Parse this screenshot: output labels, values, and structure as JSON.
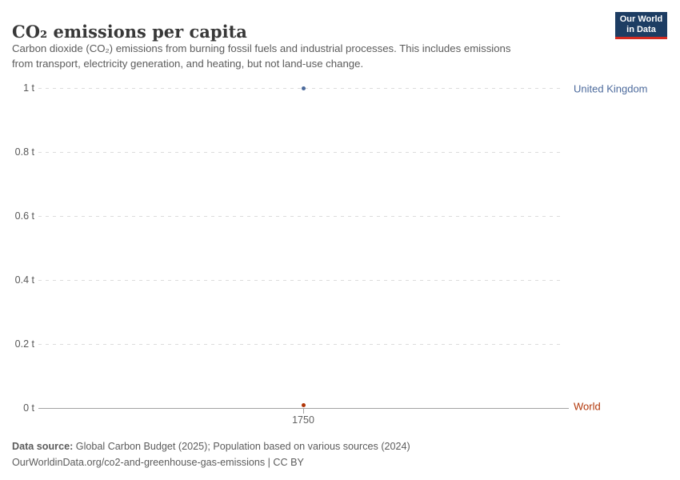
{
  "header": {
    "title": "CO₂ emissions per capita",
    "subtitle_line1": "Carbon dioxide (CO₂) emissions from burning fossil fuels and industrial processes. This includes emissions",
    "subtitle_line2": "from transport, electricity generation, and heating, but not land-use change.",
    "logo": {
      "line1": "Our World",
      "line2": "in Data",
      "bg_color": "#1d3d63",
      "stripe_color": "#d42b21"
    }
  },
  "chart_data": {
    "type": "scatter",
    "title": "CO₂ emissions per capita",
    "x": [
      1750
    ],
    "series": [
      {
        "name": "United Kingdom",
        "values": [
          1.0
        ],
        "color": "#4c6a9c"
      },
      {
        "name": "World",
        "values": [
          0.01
        ],
        "color": "#b13507"
      }
    ],
    "xlabel": "",
    "ylabel": "",
    "ylim": [
      0,
      1
    ],
    "ytick_labels": [
      "1 t",
      "0.8 t",
      "0.6 t",
      "0.4 t",
      "0.2 t",
      "0 t"
    ],
    "xtick_labels": [
      "1750"
    ],
    "grid": "horizontal-dashed",
    "legend_position": "right-entity-labels"
  },
  "axis": {
    "ytick_top": "1 t",
    "ytick_2": "0.8 t",
    "ytick_3": "0.6 t",
    "ytick_4": "0.4 t",
    "ytick_5": "0.2 t",
    "ytick_bottom": "0 t",
    "xtick": "1750"
  },
  "series_labels": {
    "united_kingdom": "United Kingdom",
    "world": "World"
  },
  "footer": {
    "source_label": "Data source:",
    "source_text": " Global Carbon Budget (2025); Population based on various sources (2024)",
    "license_line": "OurWorldinData.org/co2-and-greenhouse-gas-emissions | CC BY"
  }
}
